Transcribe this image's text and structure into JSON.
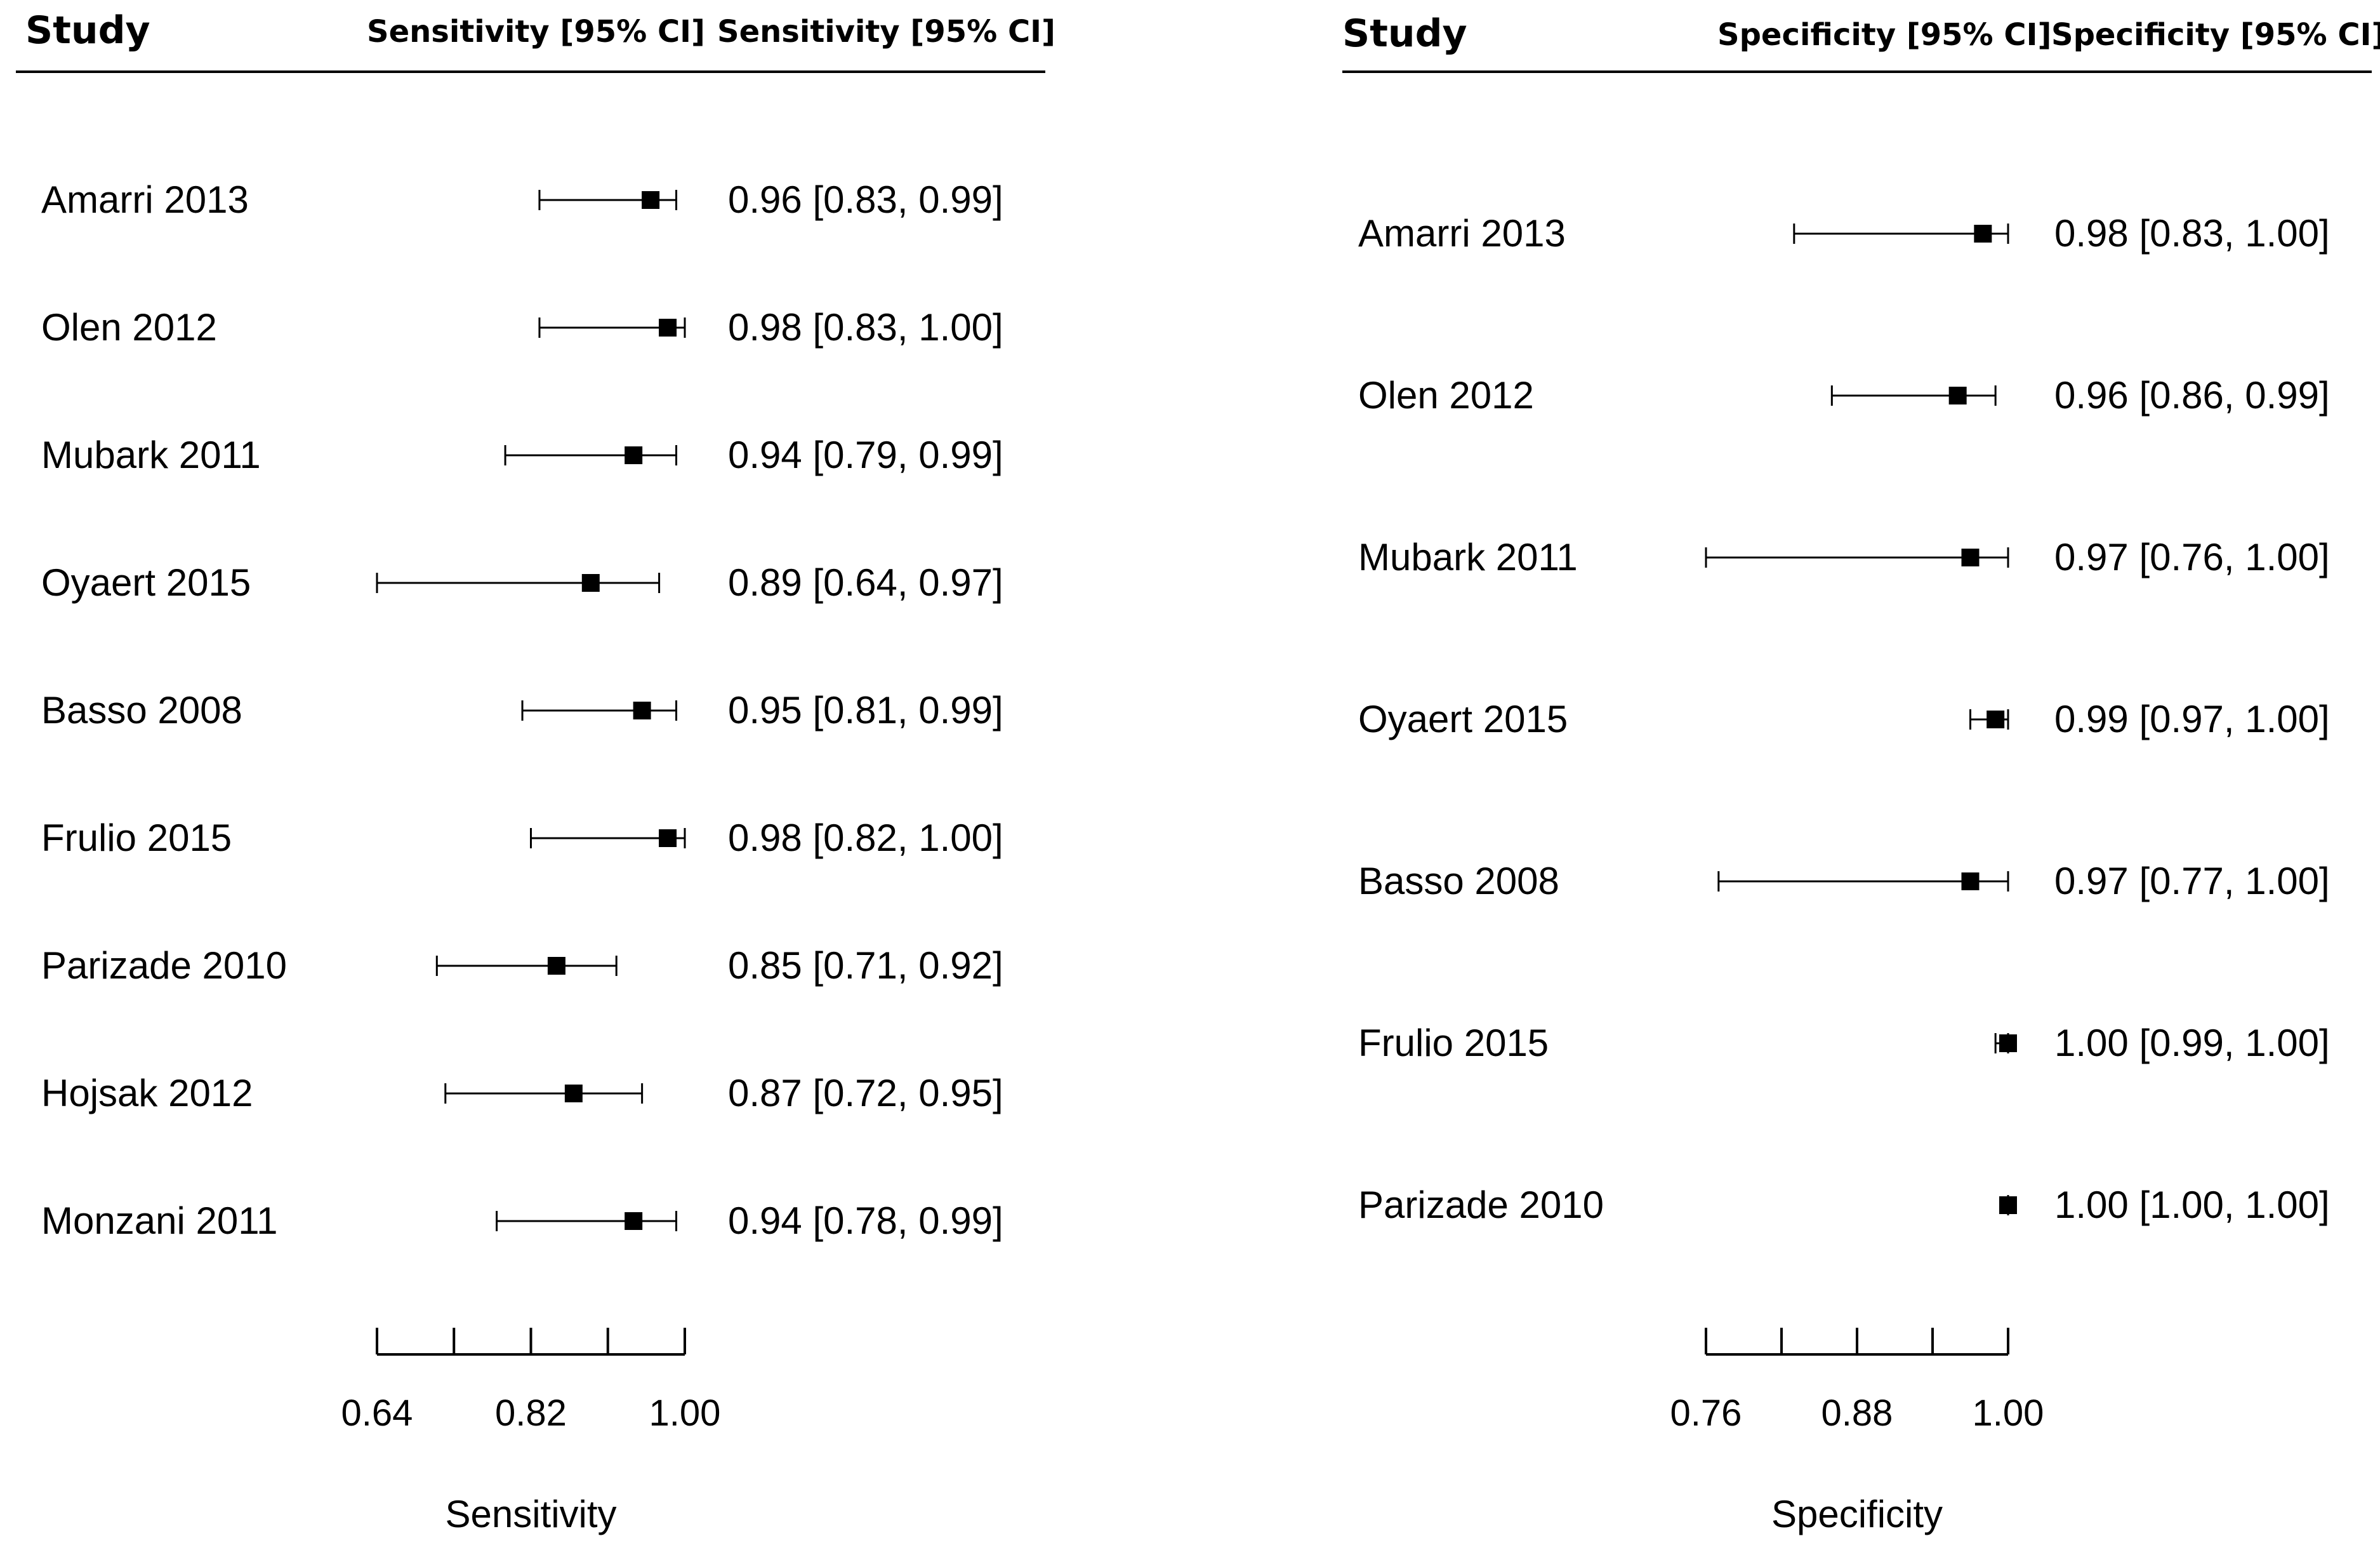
{
  "chart_data": [
    {
      "type": "forest",
      "header": {
        "study": "Study",
        "col1": "Sensitivity [95% CI]",
        "col2": "Sensitivity [95% CI]"
      },
      "xlabel": "Sensitivity",
      "xlim": [
        0.64,
        1.0
      ],
      "ticks": [
        0.64,
        0.73,
        0.82,
        0.91,
        1.0
      ],
      "tick_labels": [
        "0.64",
        "0.82",
        "1.00"
      ],
      "tick_label_values": [
        0.64,
        0.82,
        1.0
      ],
      "rows": [
        {
          "study": "Amarri 2013",
          "est": 0.96,
          "lo": 0.83,
          "hi": 0.99,
          "label": "0.96 [0.83, 0.99]"
        },
        {
          "study": "Olen 2012",
          "est": 0.98,
          "lo": 0.83,
          "hi": 1.0,
          "label": "0.98 [0.83, 1.00]"
        },
        {
          "study": "Mubark 2011",
          "est": 0.94,
          "lo": 0.79,
          "hi": 0.99,
          "label": "0.94 [0.79, 0.99]"
        },
        {
          "study": "Oyaert 2015",
          "est": 0.89,
          "lo": 0.64,
          "hi": 0.97,
          "label": "0.89 [0.64, 0.97]"
        },
        {
          "study": "Basso 2008",
          "est": 0.95,
          "lo": 0.81,
          "hi": 0.99,
          "label": "0.95 [0.81, 0.99]"
        },
        {
          "study": "Frulio 2015",
          "est": 0.98,
          "lo": 0.82,
          "hi": 1.0,
          "label": "0.98 [0.82, 1.00]"
        },
        {
          "study": "Parizade 2010",
          "est": 0.85,
          "lo": 0.71,
          "hi": 0.92,
          "label": "0.85 [0.71, 0.92]"
        },
        {
          "study": "Hojsak 2012",
          "est": 0.87,
          "lo": 0.72,
          "hi": 0.95,
          "label": "0.87 [0.72, 0.95]"
        },
        {
          "study": "Monzani 2011",
          "est": 0.94,
          "lo": 0.78,
          "hi": 0.99,
          "label": "0.94 [0.78, 0.99]"
        }
      ]
    },
    {
      "type": "forest",
      "header": {
        "study": "Study",
        "col1": "Specificity [95% CI]",
        "col2": "Specificity [95% CI]"
      },
      "xlabel": "Specificity",
      "xlim": [
        0.76,
        1.0
      ],
      "ticks": [
        0.76,
        0.82,
        0.88,
        0.94,
        1.0
      ],
      "tick_labels": [
        "0.76",
        "0.88",
        "1.00"
      ],
      "tick_label_values": [
        0.76,
        0.88,
        1.0
      ],
      "rows": [
        {
          "study": "Amarri 2013",
          "est": 0.98,
          "lo": 0.83,
          "hi": 1.0,
          "label": "0.98 [0.83, 1.00]"
        },
        {
          "study": "Olen 2012",
          "est": 0.96,
          "lo": 0.86,
          "hi": 0.99,
          "label": "0.96 [0.86, 0.99]"
        },
        {
          "study": "Mubark 2011",
          "est": 0.97,
          "lo": 0.76,
          "hi": 1.0,
          "label": "0.97 [0.76, 1.00]"
        },
        {
          "study": "Oyaert 2015",
          "est": 0.99,
          "lo": 0.97,
          "hi": 1.0,
          "label": "0.99 [0.97, 1.00]"
        },
        {
          "study": "Basso 2008",
          "est": 0.97,
          "lo": 0.77,
          "hi": 1.0,
          "label": "0.97 [0.77, 1.00]"
        },
        {
          "study": "Frulio 2015",
          "est": 1.0,
          "lo": 0.99,
          "hi": 1.0,
          "label": "1.00 [0.99, 1.00]"
        },
        {
          "study": "Parizade 2010",
          "est": 1.0,
          "lo": 1.0,
          "hi": 1.0,
          "label": "1.00 [1.00, 1.00]"
        }
      ]
    }
  ]
}
